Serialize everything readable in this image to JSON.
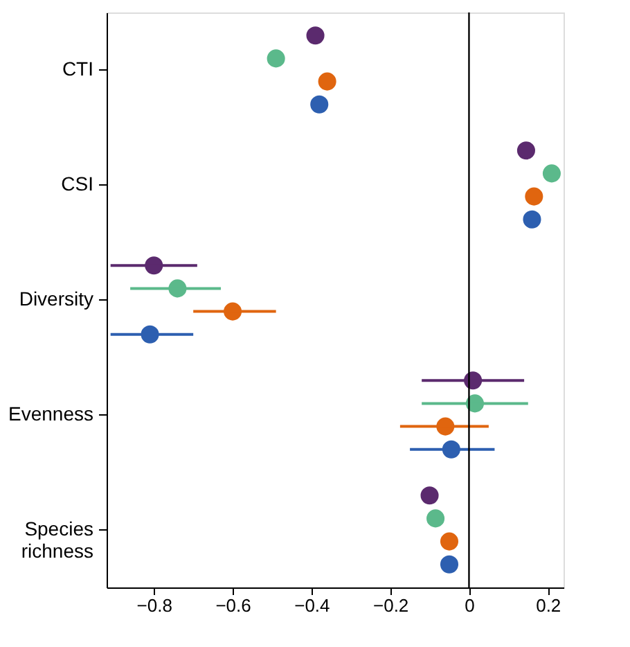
{
  "chart_data": {
    "type": "scatter",
    "orientation": "horizontal",
    "categories": [
      "CTI",
      "CSI",
      "Diversity",
      "Evenness",
      "Species richness"
    ],
    "series": [
      {
        "color": "#5b2a6e",
        "values": [
          -0.39,
          0.145,
          -0.8,
          0.01,
          -0.1
        ],
        "errors": [
          null,
          null,
          [
            -0.91,
            -0.69
          ],
          [
            -0.12,
            0.14
          ],
          null
        ]
      },
      {
        "color": "#5bb98b",
        "values": [
          -0.49,
          0.21,
          -0.74,
          0.015,
          -0.085
        ],
        "errors": [
          null,
          null,
          [
            -0.86,
            -0.63
          ],
          [
            -0.12,
            0.15
          ],
          null
        ]
      },
      {
        "color": "#e0650f",
        "values": [
          -0.36,
          0.165,
          -0.6,
          -0.06,
          -0.05
        ],
        "errors": [
          null,
          null,
          [
            -0.7,
            -0.49
          ],
          [
            -0.175,
            0.05
          ],
          null
        ]
      },
      {
        "color": "#2d5fb0",
        "values": [
          -0.38,
          0.16,
          -0.81,
          -0.045,
          -0.05
        ],
        "errors": [
          null,
          null,
          [
            -0.91,
            -0.7
          ],
          [
            -0.15,
            0.065
          ],
          null
        ]
      }
    ],
    "xlim": [
      -0.92,
      0.24
    ],
    "xticks": [
      -0.8,
      -0.6,
      -0.4,
      -0.2,
      {
        "value": 0,
        "label": "0"
      },
      0.2
    ],
    "ref_lines": [
      {
        "axis": "x",
        "value": 0,
        "color": "#000000"
      }
    ],
    "marker": "circle",
    "grid": false
  }
}
